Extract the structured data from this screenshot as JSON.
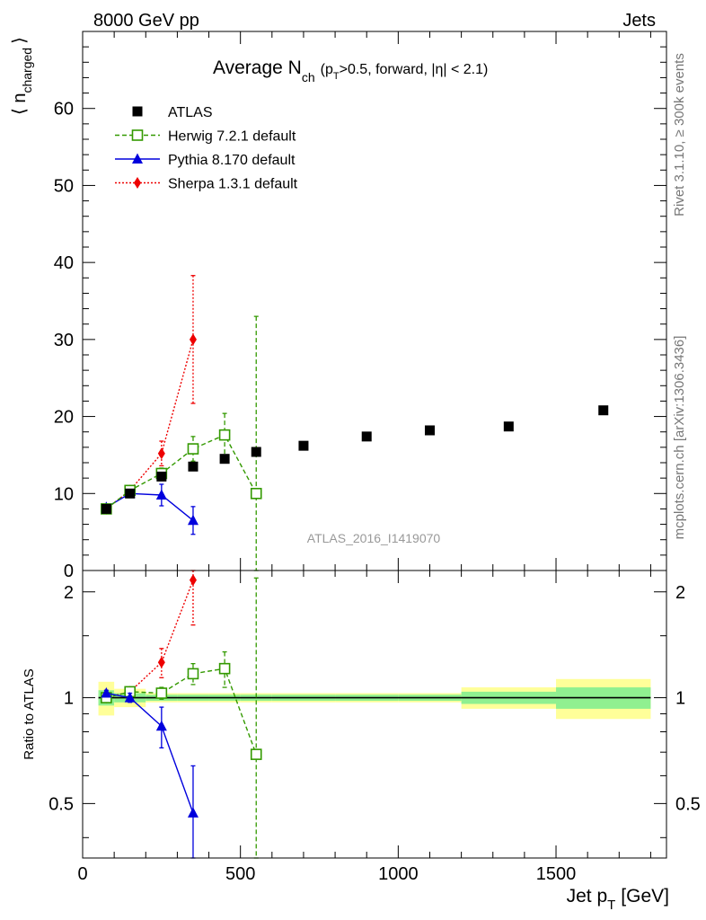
{
  "header": {
    "left": "8000 GeV pp",
    "right": "Jets"
  },
  "side_labels": {
    "rivet": "Rivet 3.1.10, ≥ 300k events",
    "mcplots": "mcplots.cern.ch [arXiv:1306.3436]"
  },
  "colors": {
    "data": "#000000",
    "herwig": "#339900",
    "pythia": "#0000dd",
    "sherpa": "#ee0000",
    "band_inner": "#90f090",
    "band_outer": "#ffff99"
  },
  "chart_data": [
    {
      "type": "scatter",
      "title_main": "Average N",
      "title_sub": "ch",
      "title_rest": "(p",
      "title_rest_sub": "T",
      "title_rest2": ">0.5, forward, |η| < 2.1)",
      "watermark": "ATLAS_2016_I1419070",
      "ylabel": "⟨ n",
      "ylabel_sub": "charged",
      "ylabel_end": "⟩",
      "xlim": [
        0,
        1850
      ],
      "ylim": [
        0,
        70
      ],
      "yticks": [
        0,
        10,
        20,
        30,
        40,
        50,
        60
      ],
      "ytick_labels": [
        "0",
        "10",
        "20",
        "30",
        "40",
        "50",
        "60"
      ],
      "legend_position": "top-left",
      "series": [
        {
          "name": "ATLAS",
          "key": "atlas",
          "marker": "square-filled",
          "x": [
            75,
            150,
            250,
            350,
            450,
            550,
            700,
            900,
            1100,
            1350,
            1650
          ],
          "y": [
            8.0,
            10.0,
            12.2,
            13.5,
            14.5,
            15.4,
            16.2,
            17.4,
            18.2,
            18.7,
            20.8
          ],
          "err": [
            0.2,
            0.2,
            0.2,
            0.2,
            0.2,
            0.2,
            0.2,
            0.2,
            0.2,
            0.2,
            0.2
          ]
        },
        {
          "name": "Herwig 7.2.1 default",
          "key": "herwig",
          "marker": "square-open",
          "line": "dashed",
          "x": [
            75,
            150,
            250,
            350,
            450,
            550
          ],
          "y": [
            8.0,
            10.4,
            12.6,
            15.8,
            17.6,
            10.0
          ],
          "err": [
            0.3,
            0.4,
            0.7,
            1.6,
            2.8,
            23.0
          ]
        },
        {
          "name": "Pythia 8.170 default",
          "key": "pythia",
          "marker": "triangle-filled",
          "line": "solid",
          "x": [
            75,
            150,
            250,
            350
          ],
          "y": [
            8.2,
            10.0,
            9.8,
            6.5
          ],
          "err": [
            0.2,
            0.4,
            1.4,
            1.8
          ]
        },
        {
          "name": "Sherpa 1.3.1 default",
          "key": "sherpa",
          "marker": "diamond-filled",
          "line": "dotted",
          "x": [
            75,
            150,
            250,
            350
          ],
          "y": [
            8.0,
            10.4,
            15.2,
            30.0
          ],
          "err": [
            0.2,
            0.3,
            1.6,
            8.3
          ]
        }
      ]
    },
    {
      "type": "scatter",
      "ylabel": "Ratio to ATLAS",
      "xlabel": "Jet p",
      "xlabel_sub": "T",
      "xlabel_end": "[GeV]",
      "xlim": [
        0,
        1850
      ],
      "ylim": [
        0.35,
        2.3
      ],
      "log_y": true,
      "xticks": [
        0,
        500,
        1000,
        1500
      ],
      "xtick_labels": [
        "0",
        "500",
        "1000",
        "1500"
      ],
      "yticks": [
        0.5,
        1,
        2
      ],
      "ytick_labels": [
        "0.5",
        "1",
        "2"
      ],
      "reference_band": {
        "bins": [
          [
            50,
            100
          ],
          [
            100,
            200
          ],
          [
            200,
            300
          ],
          [
            300,
            400
          ],
          [
            400,
            500
          ],
          [
            500,
            600
          ],
          [
            600,
            800
          ],
          [
            800,
            1000
          ],
          [
            1000,
            1200
          ],
          [
            1200,
            1500
          ],
          [
            1500,
            1800
          ]
        ],
        "inner": [
          0.05,
          0.03,
          0.02,
          0.02,
          0.02,
          0.02,
          0.02,
          0.02,
          0.02,
          0.04,
          0.07
        ],
        "outer": [
          0.11,
          0.06,
          0.03,
          0.03,
          0.03,
          0.03,
          0.03,
          0.03,
          0.03,
          0.07,
          0.13
        ]
      },
      "series": [
        {
          "key": "herwig",
          "x": [
            75,
            150,
            250,
            350,
            450,
            550
          ],
          "y": [
            1.0,
            1.04,
            1.03,
            1.17,
            1.21,
            0.69
          ],
          "err": [
            0.02,
            0.03,
            0.04,
            0.08,
            0.14,
            1.5
          ]
        },
        {
          "key": "pythia",
          "x": [
            75,
            150,
            250,
            350
          ],
          "y": [
            1.03,
            1.0,
            0.83,
            0.47
          ],
          "err": [
            0.02,
            0.03,
            0.11,
            0.17
          ]
        },
        {
          "key": "sherpa",
          "x": [
            75,
            150,
            250,
            350
          ],
          "y": [
            1.0,
            1.04,
            1.26,
            2.16
          ],
          "err": [
            0.02,
            0.02,
            0.12,
            0.55
          ]
        }
      ]
    }
  ]
}
